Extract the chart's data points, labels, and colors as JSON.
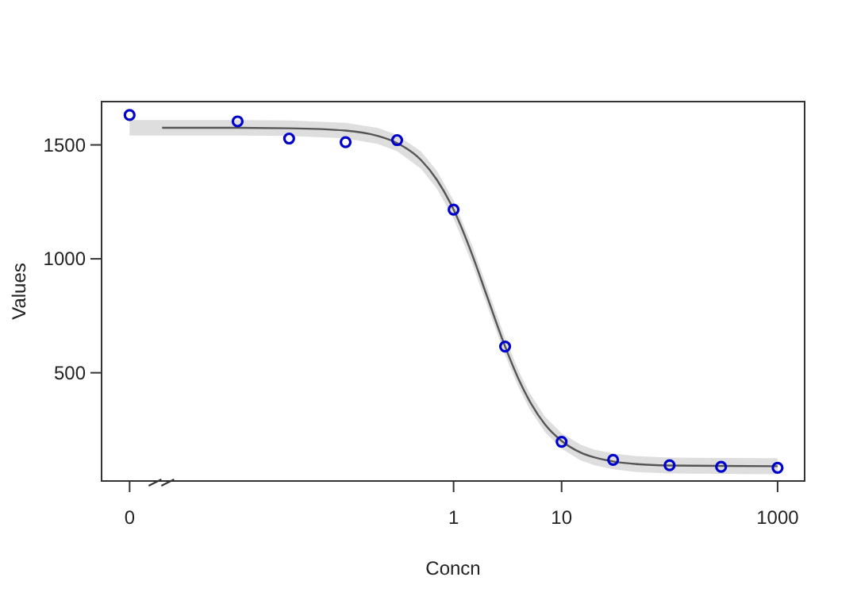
{
  "chart_data": {
    "type": "line",
    "xlabel": "Concn",
    "ylabel": "Values",
    "log": "x",
    "xlim": [
      0.00055,
      1780
    ],
    "xticks": [
      {
        "value": 0.001,
        "label": "0"
      },
      1,
      10,
      1000
    ],
    "ylim": [
      25,
      1690
    ],
    "yticks": [
      500,
      1000,
      1500
    ],
    "grid": false,
    "series": [
      {
        "color": "#555555",
        "x": [
          0.001,
          0.002,
          0.01,
          0.03,
          0.1,
          0.2,
          0.3,
          0.5,
          0.7,
          1,
          1.5,
          2,
          3,
          4,
          5,
          7,
          10,
          15,
          20,
          30,
          50,
          100,
          300,
          1000
        ],
        "values": [
          null,
          1575,
          1575,
          1573,
          1563,
          1539,
          1508,
          1433,
          1347,
          1216,
          1013,
          847,
          615,
          472,
          380,
          274,
          201,
          150,
          129,
          111,
          99,
          93,
          91,
          90
        ],
        "lower": [
          1541,
          1541,
          1541,
          1539,
          1529,
          1504,
          1472,
          1395,
          1308,
          1176,
          973,
          807,
          577,
          436,
          345,
          240,
          167,
          116,
          95,
          76,
          64,
          58,
          56,
          55
        ],
        "upper": [
          1609,
          1609,
          1609,
          1607,
          1597,
          1574,
          1544,
          1471,
          1386,
          1256,
          1053,
          887,
          653,
          508,
          415,
          308,
          235,
          184,
          163,
          146,
          134,
          128,
          126,
          125
        ]
      },
      {
        "type": "scatter",
        "color": "#0000cc",
        "marker": "circle",
        "x": [
          0.001,
          0.01,
          0.03,
          0.1,
          0.3,
          1,
          3,
          10,
          30,
          100,
          300,
          1000
        ],
        "values": [
          1631,
          1603,
          1528,
          1512,
          1521,
          1216,
          615,
          197,
          118,
          94,
          87,
          83
        ]
      }
    ]
  }
}
